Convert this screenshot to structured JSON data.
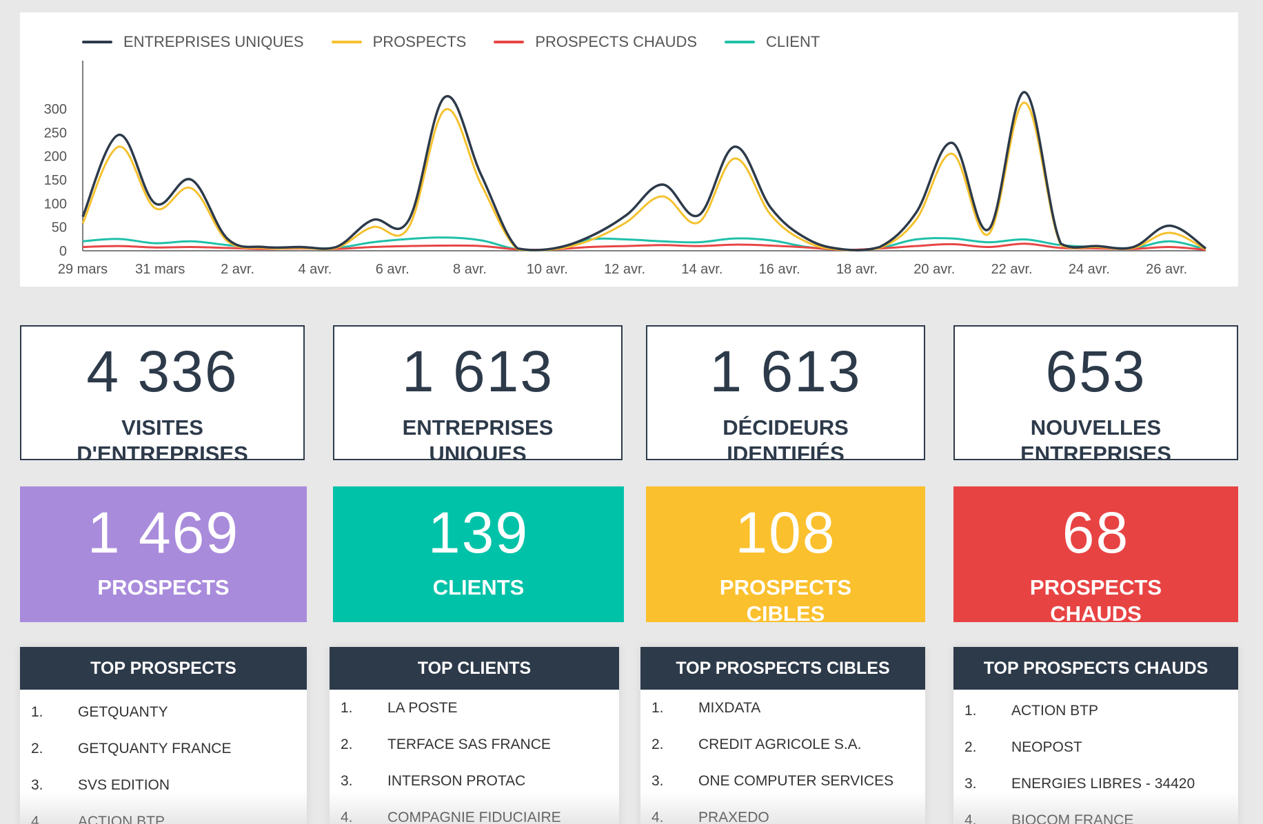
{
  "legend": [
    {
      "label": "ENTREPRISES UNIQUES",
      "color": "#2d3a4a"
    },
    {
      "label": "PROSPECTS",
      "color": "#f5c12e"
    },
    {
      "label": "PROSPECTS CHAUDS",
      "color": "#e84545"
    },
    {
      "label": "CLIENT",
      "color": "#1fc0a8"
    }
  ],
  "chart_data": {
    "type": "line",
    "x_tick_labels": [
      "29 mars",
      "31 mars",
      "2 avr.",
      "4 avr.",
      "6 avr.",
      "8 avr.",
      "10 avr.",
      "12 avr.",
      "14 avr.",
      "16 avr.",
      "18 avr.",
      "20 avr.",
      "22 avr.",
      "24 avr.",
      "26 avr."
    ],
    "y_ticks": [
      0,
      50,
      100,
      150,
      200,
      250,
      300
    ],
    "ylim": [
      0,
      400
    ],
    "series": [
      {
        "name": "ENTREPRISES UNIQUES",
        "color": "#2d3a4a",
        "values": [
          72,
          245,
          100,
          150,
          25,
          8,
          8,
          8,
          65,
          65,
          325,
          160,
          5,
          5,
          30,
          75,
          140,
          75,
          220,
          90,
          25,
          3,
          8,
          80,
          228,
          45,
          335,
          15,
          10,
          8,
          53,
          5
        ]
      },
      {
        "name": "PROSPECTS",
        "color": "#f5c12e",
        "values": [
          58,
          220,
          90,
          132,
          20,
          6,
          6,
          6,
          50,
          50,
          298,
          140,
          3,
          3,
          22,
          60,
          115,
          60,
          195,
          75,
          18,
          2,
          6,
          65,
          205,
          35,
          313,
          12,
          8,
          6,
          38,
          3
        ]
      },
      {
        "name": "PROSPECTS CHAUDS",
        "color": "#e84545",
        "values": [
          8,
          10,
          7,
          8,
          6,
          4,
          5,
          4,
          8,
          10,
          11,
          10,
          3,
          3,
          8,
          10,
          12,
          10,
          13,
          11,
          7,
          2,
          5,
          10,
          14,
          8,
          15,
          6,
          5,
          4,
          8,
          2
        ]
      },
      {
        "name": "CLIENT",
        "color": "#1fc0a8",
        "values": [
          20,
          25,
          16,
          20,
          12,
          6,
          6,
          6,
          18,
          25,
          28,
          22,
          3,
          3,
          24,
          24,
          20,
          18,
          26,
          22,
          8,
          2,
          6,
          24,
          26,
          18,
          24,
          12,
          8,
          6,
          20,
          3
        ]
      }
    ]
  },
  "stats": [
    {
      "value": "4 336",
      "label": "VISITES\nD'ENTREPRISES"
    },
    {
      "value": "1 613",
      "label": "ENTREPRISES\nUNIQUES"
    },
    {
      "value": "1 613",
      "label": "DÉCIDEURS\nIDENTIFIÉS"
    },
    {
      "value": "653",
      "label": "NOUVELLES\nENTREPRISES"
    }
  ],
  "kpis": [
    {
      "value": "1 469",
      "label": "PROSPECTS",
      "color": "#a98bdc"
    },
    {
      "value": "139",
      "label": "CLIENTS",
      "color": "#00c2a8"
    },
    {
      "value": "108",
      "label": "PROSPECTS\nCIBLES",
      "color": "#fbc02d"
    },
    {
      "value": "68",
      "label": "PROSPECTS\nCHAUDS",
      "color": "#e84343"
    }
  ],
  "lists": [
    {
      "title": "TOP PROSPECTS",
      "items": [
        {
          "idx": "1.",
          "name": "GETQUANTY"
        },
        {
          "idx": "2.",
          "name": "GETQUANTY FRANCE"
        },
        {
          "idx": "3.",
          "name": "SVS EDITION"
        },
        {
          "idx": "4.",
          "name": "ACTION BTP"
        }
      ]
    },
    {
      "title": "TOP CLIENTS",
      "items": [
        {
          "idx": "1.",
          "name": "LA POSTE"
        },
        {
          "idx": "2.",
          "name": "TERFACE SAS FRANCE"
        },
        {
          "idx": "3.",
          "name": "INTERSON PROTAC"
        },
        {
          "idx": "4.",
          "name": "COMPAGNIE FIDUCIAIRE"
        }
      ]
    },
    {
      "title": "TOP PROSPECTS CIBLES",
      "items": [
        {
          "idx": "1.",
          "name": "MIXDATA"
        },
        {
          "idx": "2.",
          "name": "CREDIT AGRICOLE S.A."
        },
        {
          "idx": "3.",
          "name": "ONE COMPUTER SERVICES"
        },
        {
          "idx": "4.",
          "name": "PRAXEDO"
        }
      ]
    },
    {
      "title": "TOP PROSPECTS CHAUDS",
      "items": [
        {
          "idx": "1.",
          "name": "ACTION BTP"
        },
        {
          "idx": "2.",
          "name": "NEOPOST"
        },
        {
          "idx": "3.",
          "name": "ENERGIES LIBRES - 34420"
        },
        {
          "idx": "4.",
          "name": "BIOCOM FRANCE"
        }
      ]
    }
  ]
}
